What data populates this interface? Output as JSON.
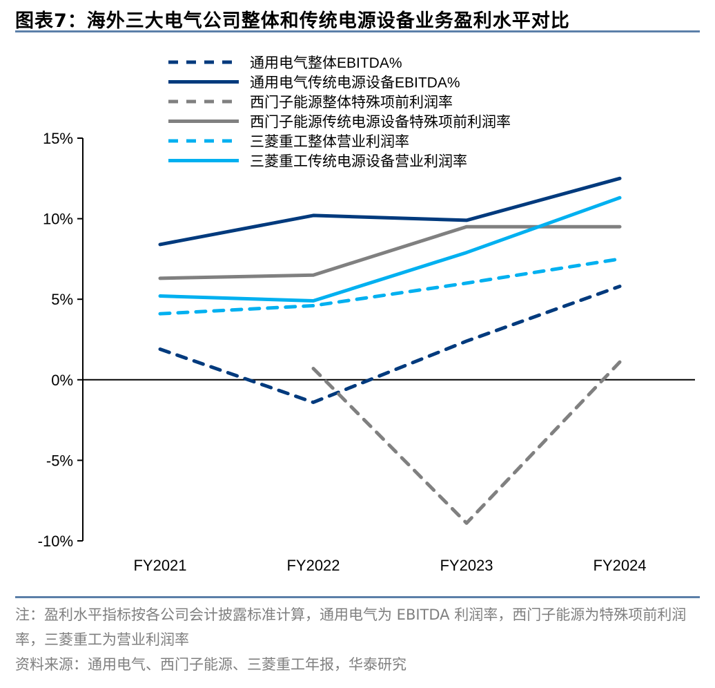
{
  "title": "图表7：海外三大电气公司整体和传统电源设备业务盈利水平对比",
  "notes": {
    "note": "注：盈利水平指标按各公司会计披露标准计算，通用电气为 EBITDA 利润率，西门子能源为特殊项前利润率，三菱重工为营业利润率",
    "source": "资料来源：通用电气、西门子能源、三菱重工年报，华泰研究"
  },
  "chart_data": {
    "type": "line",
    "categories": [
      "FY2021",
      "FY2022",
      "FY2023",
      "FY2024"
    ],
    "ylim": [
      -10,
      15
    ],
    "yticks": [
      15,
      10,
      5,
      0,
      -5,
      -10
    ],
    "ytick_labels": [
      "15%",
      "10%",
      "5%",
      "0%",
      "-5%",
      "-10%"
    ],
    "grid": false,
    "legend_placement": "top",
    "series": [
      {
        "name": "通用电气整体EBITDA%",
        "values": [
          1.9,
          -1.4,
          2.4,
          5.8
        ],
        "color": "#003a7d",
        "dash": true
      },
      {
        "name": "通用电气传统电源设备EBITDA%",
        "values": [
          8.4,
          10.2,
          9.9,
          12.5
        ],
        "color": "#003a7d",
        "dash": false
      },
      {
        "name": "西门子能源整体特殊项前利润率",
        "values": [
          null,
          0.7,
          -8.9,
          1.1
        ],
        "color": "#808080",
        "dash": true
      },
      {
        "name": "西门子能源传统电源设备特殊项前利润率",
        "values": [
          6.3,
          6.5,
          9.5,
          9.5
        ],
        "color": "#808080",
        "dash": false
      },
      {
        "name": "三菱重工整体营业利润率",
        "values": [
          4.1,
          4.6,
          6.0,
          7.5
        ],
        "color": "#00b0f0",
        "dash": true
      },
      {
        "name": "三菱重工传统电源设备营业利润率",
        "values": [
          5.2,
          4.9,
          7.9,
          11.3
        ],
        "color": "#00b0f0",
        "dash": false
      }
    ]
  }
}
